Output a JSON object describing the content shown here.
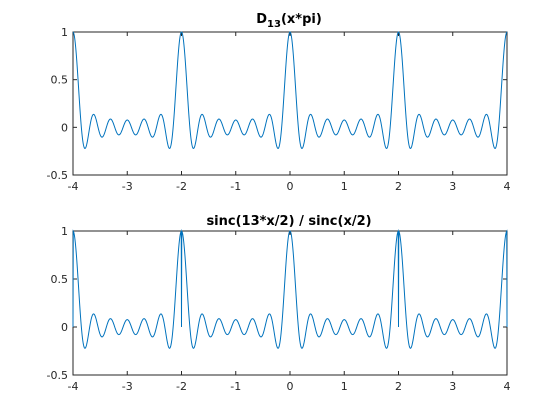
{
  "figure": {
    "background": "#ffffff",
    "axis_color": "#262626",
    "series_color": "#0072bd"
  },
  "chart_data": [
    {
      "type": "line",
      "title": "D",
      "title_subscript": "13",
      "title_suffix": "(x*pi)",
      "xlabel": "",
      "ylabel": "",
      "xlim": [
        -4,
        4
      ],
      "ylim": [
        -0.5,
        1
      ],
      "xticks": [
        -4,
        -3,
        -2,
        -1,
        0,
        1,
        2,
        3,
        4
      ],
      "yticks": [
        -0.5,
        0,
        0.5,
        1
      ],
      "xtick_labels": [
        "-4",
        "-3",
        "-2",
        "-1",
        "0",
        "1",
        "2",
        "3",
        "4"
      ],
      "ytick_labels": [
        "-0.5",
        "0",
        "0.5",
        "1"
      ],
      "grid": false,
      "series": [
        {
          "function": "sin(13*pi*x/2) / (13*sin(pi*x/2))",
          "x_range": [
            -4,
            4
          ]
        }
      ]
    },
    {
      "type": "line",
      "title": "sinc(13*x/2) / sinc(x/2)",
      "xlabel": "",
      "ylabel": "",
      "xlim": [
        -4,
        4
      ],
      "ylim": [
        -0.5,
        1
      ],
      "xticks": [
        -4,
        -3,
        -2,
        -1,
        0,
        1,
        2,
        3,
        4
      ],
      "yticks": [
        -0.5,
        0,
        0.5,
        1
      ],
      "xtick_labels": [
        "-4",
        "-3",
        "-2",
        "-1",
        "0",
        "1",
        "2",
        "3",
        "4"
      ],
      "ytick_labels": [
        "-0.5",
        "0",
        "0.5",
        "1"
      ],
      "grid": false,
      "series": [
        {
          "function": "sinc(13*x/2) / sinc(x/2)",
          "x_range": [
            -4,
            4
          ]
        }
      ]
    }
  ]
}
